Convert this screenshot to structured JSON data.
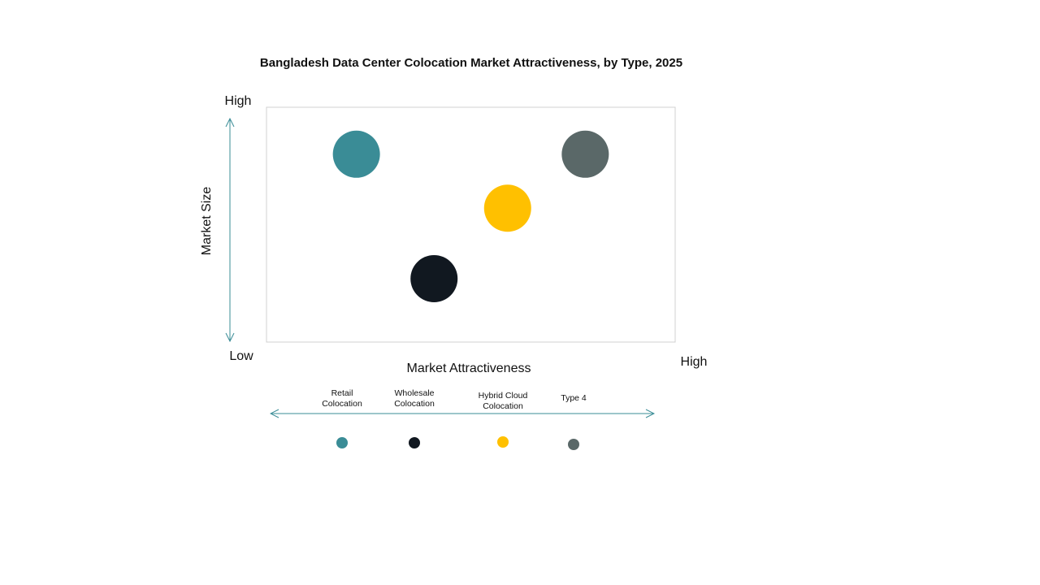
{
  "chart_data": {
    "type": "bubble",
    "title": "Bangladesh Data Center Colocation Market Attractiveness,  by Type, 2025",
    "ylabel": "Market Size",
    "y_high": "High",
    "y_low": "Low",
    "xlabel": "Market Attractiveness",
    "x_high": "High",
    "xlim": [
      0,
      100
    ],
    "ylim": [
      0,
      100
    ],
    "series": [
      {
        "name": "Retail Colocation",
        "color": "#3a8c96",
        "x": [
          22
        ],
        "values": [
          80
        ]
      },
      {
        "name": "Wholesale Colocation",
        "color": "#111820",
        "x": [
          41
        ],
        "values": [
          27
        ]
      },
      {
        "name": "Hybrid Cloud Colocation",
        "color": "#ffc000",
        "x": [
          59
        ],
        "values": [
          57
        ]
      },
      {
        "name": "Type 4",
        "color": "#5a6868",
        "x": [
          78
        ],
        "values": [
          80
        ]
      }
    ]
  }
}
